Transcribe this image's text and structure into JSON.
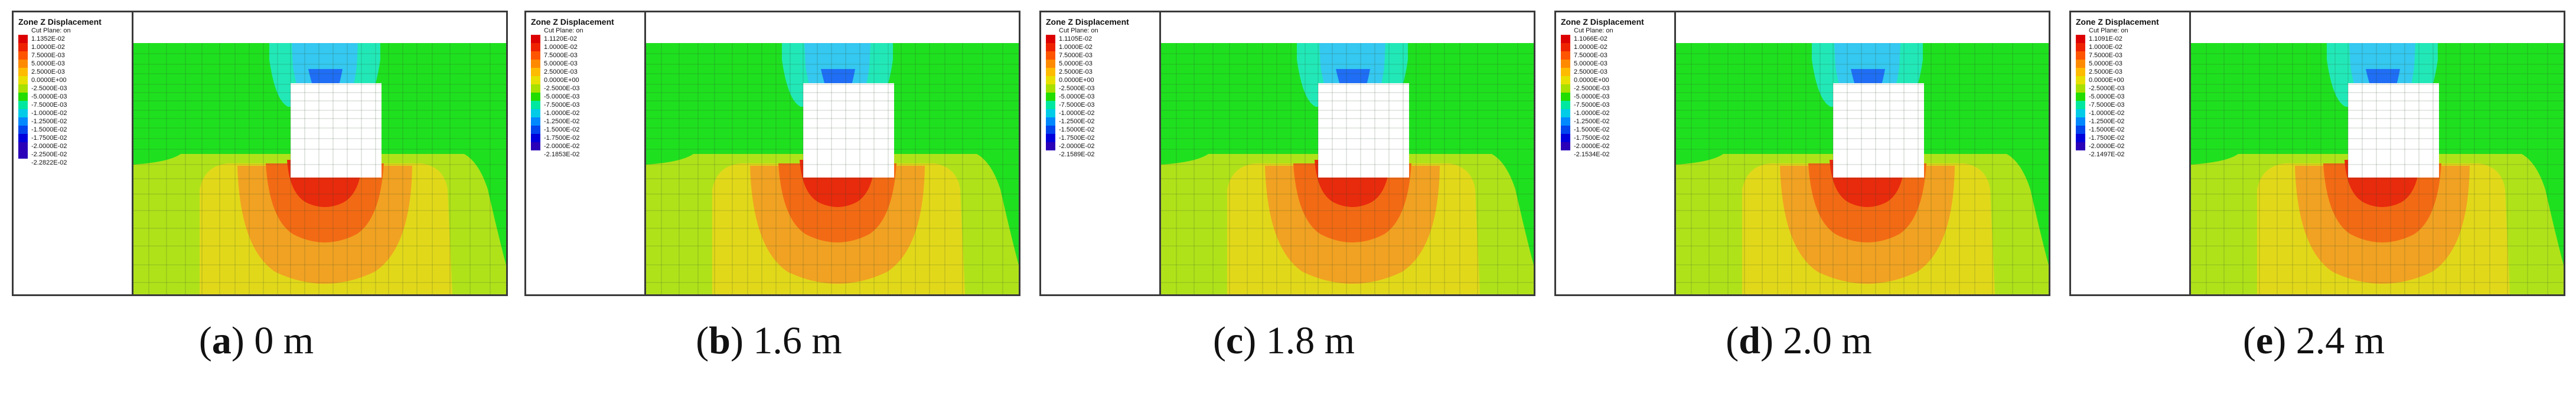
{
  "legend": {
    "title": "Zone Z Displacement",
    "subtitle": "Cut Plane: on",
    "colors": [
      "#dd0000",
      "#ee2200",
      "#ff5500",
      "#ff8a00",
      "#ffbb00",
      "#e8e000",
      "#a8e000",
      "#22dd00",
      "#00e8a0",
      "#00cce8",
      "#0088ff",
      "#0044ee",
      "#0000dd",
      "#2a00b8"
    ],
    "entries": [
      [
        "1.1352E-02",
        "1.0000E-02",
        "7.5000E-03",
        "5.0000E-03",
        "2.5000E-03",
        "0.0000E+00",
        "-2.5000E-03",
        "-5.0000E-03",
        "-7.5000E-03",
        "-1.0000E-02",
        "-1.2500E-02",
        "-1.5000E-02",
        "-1.7500E-02",
        "-2.0000E-02",
        "-2.2500E-02",
        "-2.2822E-02"
      ],
      [
        "1.1120E-02",
        "1.0000E-02",
        "7.5000E-03",
        "5.0000E-03",
        "2.5000E-03",
        "0.0000E+00",
        "-2.5000E-03",
        "-5.0000E-03",
        "-7.5000E-03",
        "-1.0000E-02",
        "-1.2500E-02",
        "-1.5000E-02",
        "-1.7500E-02",
        "-2.0000E-02",
        "-2.1853E-02"
      ],
      [
        "1.1105E-02",
        "1.0000E-02",
        "7.5000E-03",
        "5.0000E-03",
        "2.5000E-03",
        "0.0000E+00",
        "-2.5000E-03",
        "-5.0000E-03",
        "-7.5000E-03",
        "-1.0000E-02",
        "-1.2500E-02",
        "-1.5000E-02",
        "-1.7500E-02",
        "-2.0000E-02",
        "-2.1589E-02"
      ],
      [
        "1.1066E-02",
        "1.0000E-02",
        "7.5000E-03",
        "5.0000E-03",
        "2.5000E-03",
        "0.0000E+00",
        "-2.5000E-03",
        "-5.0000E-03",
        "-7.5000E-03",
        "-1.0000E-02",
        "-1.2500E-02",
        "-1.5000E-02",
        "-1.7500E-02",
        "-2.0000E-02",
        "-2.1534E-02"
      ],
      [
        "1.1091E-02",
        "1.0000E-02",
        "7.5000E-03",
        "5.0000E-03",
        "2.5000E-03",
        "0.0000E+00",
        "-2.5000E-03",
        "-5.0000E-03",
        "-7.5000E-03",
        "-1.0000E-02",
        "-1.2500E-02",
        "-1.5000E-02",
        "-1.7500E-02",
        "-2.0000E-02",
        "-2.1497E-02"
      ]
    ]
  },
  "contour_colors": {
    "green": "#1fe01f",
    "cyan": "#22e8b8",
    "light_blue": "#35c8f0",
    "blue": "#1f6ef5",
    "dark_blue": "#0a1ee0",
    "yellow_green": "#b0e21a",
    "yellow": "#e2d81a",
    "orange": "#f1a222",
    "dark_orange": "#f36a14",
    "red": "#e82a0d"
  },
  "panels": [
    {
      "letter": "a",
      "value": "0 m"
    },
    {
      "letter": "b",
      "value": "1.6 m"
    },
    {
      "letter": "c",
      "value": "1.8 m"
    },
    {
      "letter": "d",
      "value": "2.0 m"
    },
    {
      "letter": "e",
      "value": "2.4 m"
    }
  ]
}
